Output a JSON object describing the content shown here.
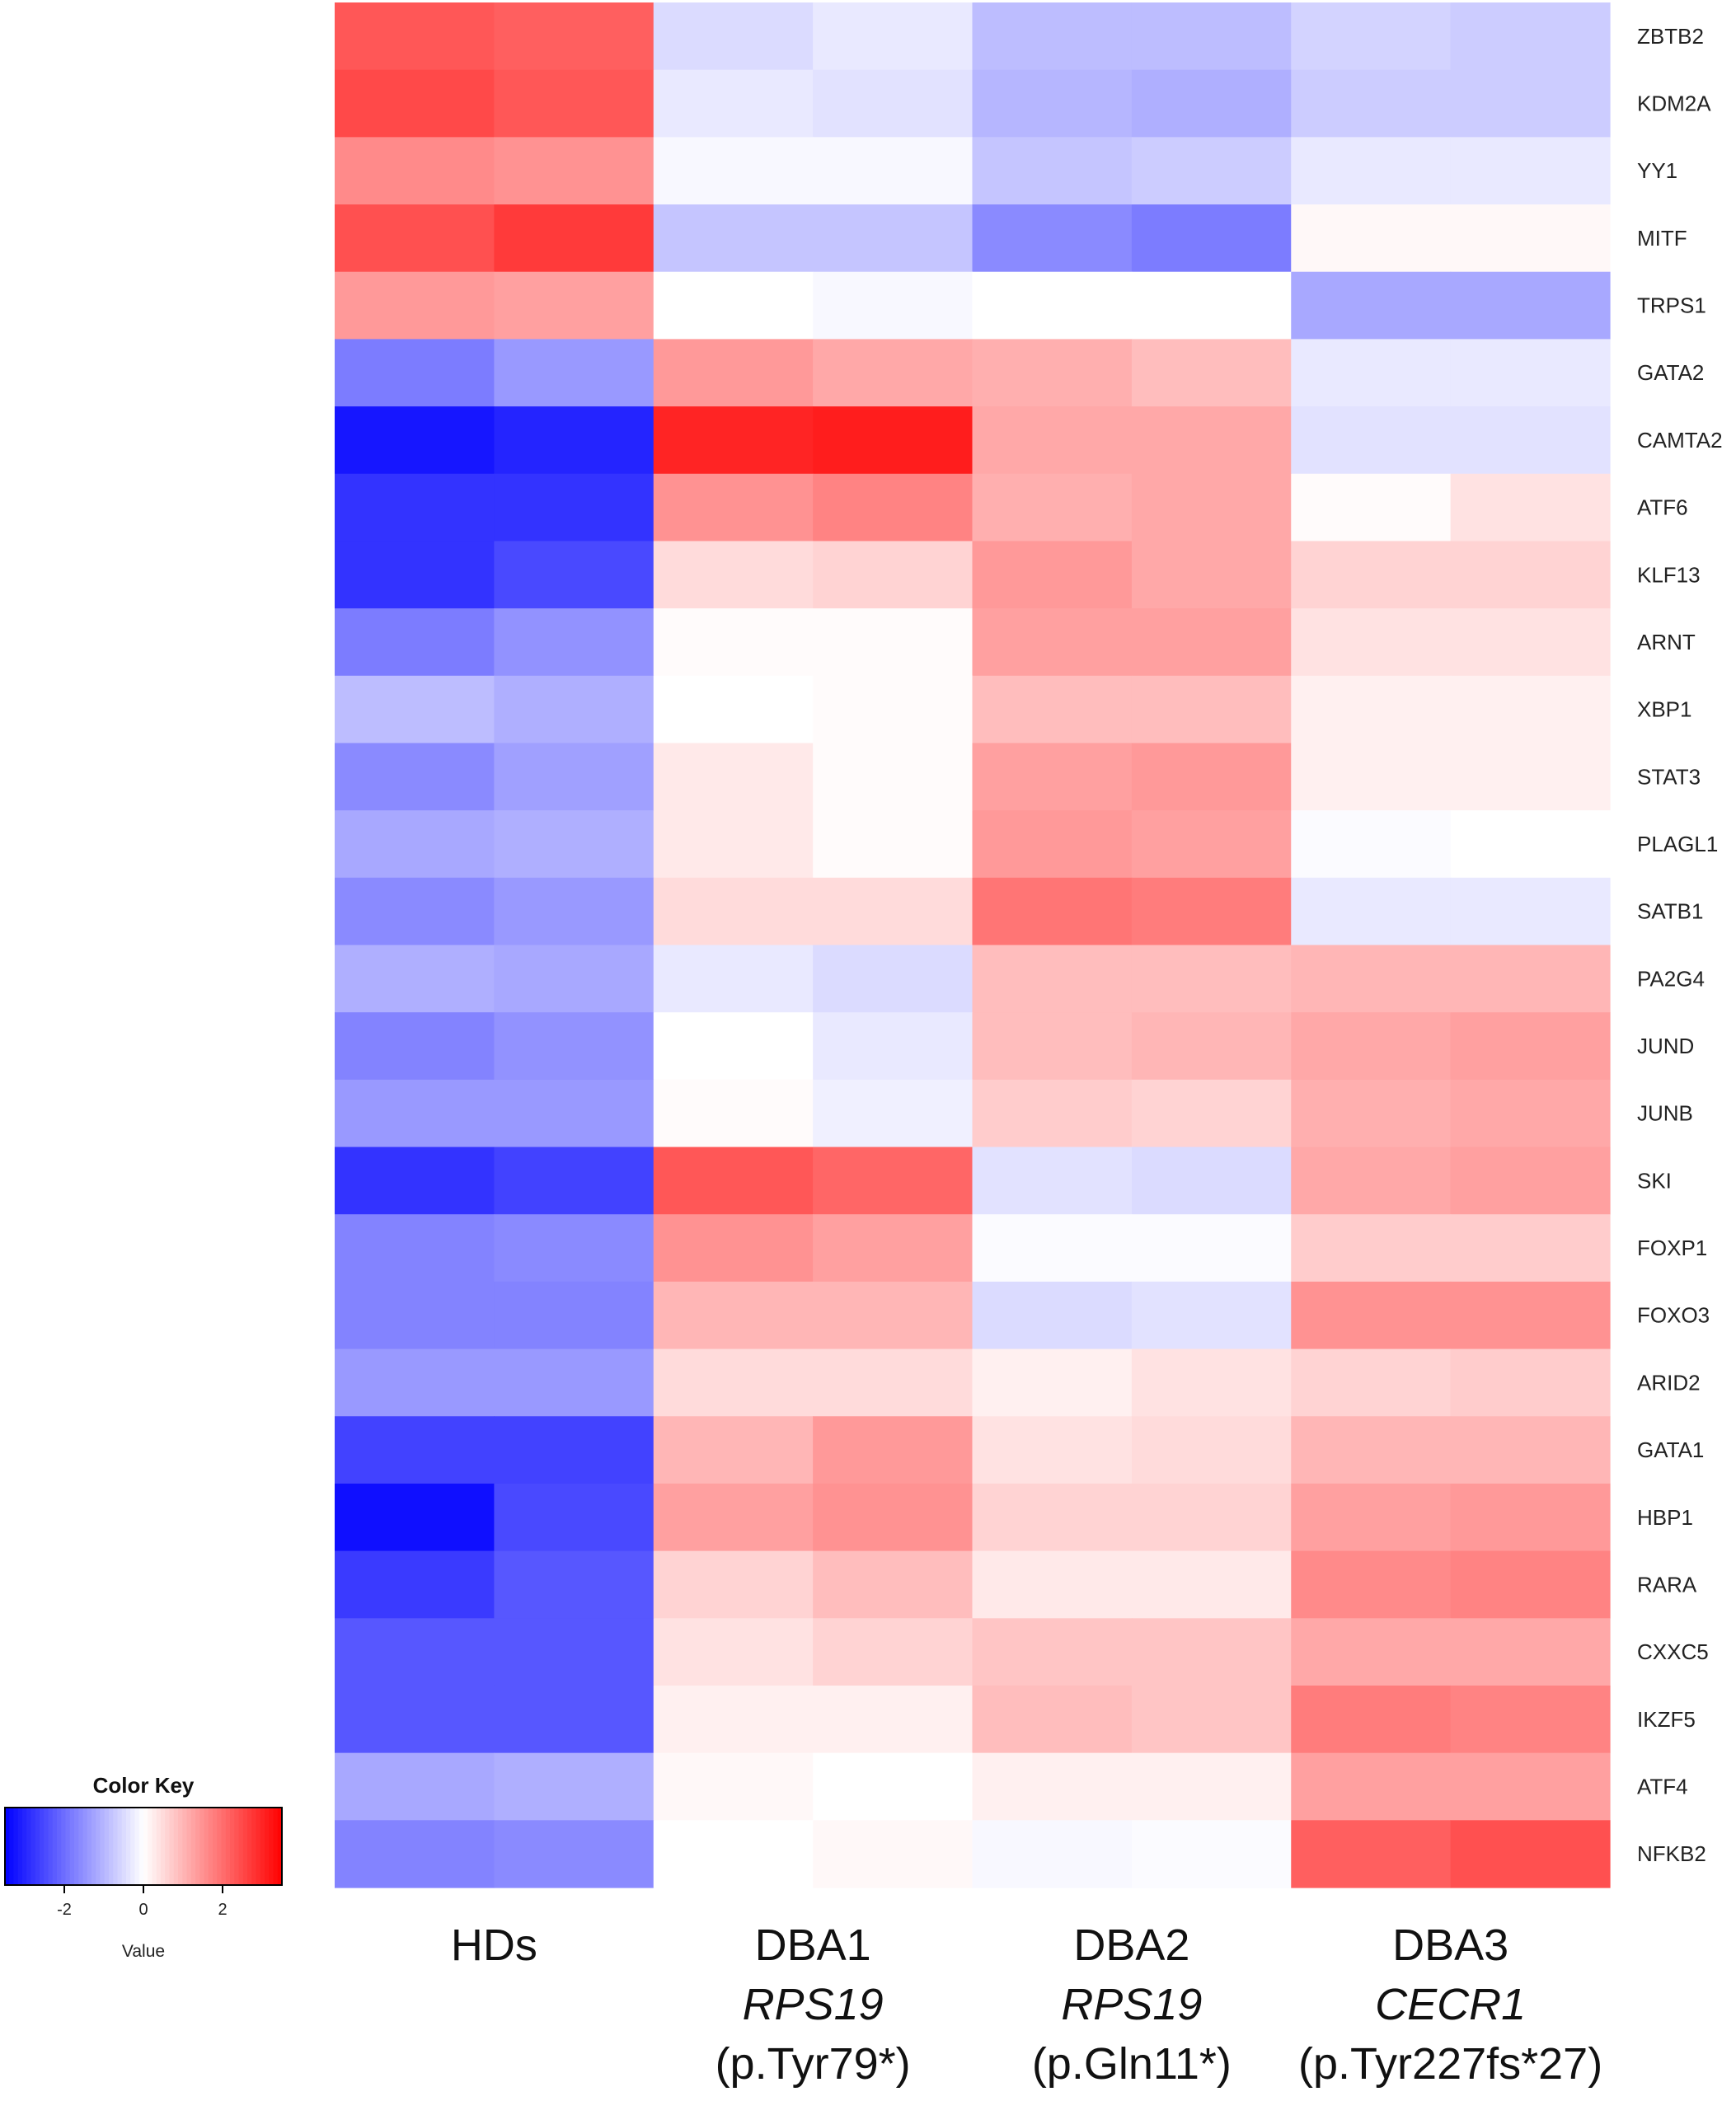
{
  "chart_data": {
    "type": "heatmap",
    "rows": [
      "ZBTB2",
      "KDM2A",
      "YY1",
      "MITF",
      "TRPS1",
      "GATA2",
      "CAMTA2",
      "ATF6",
      "KLF13",
      "ARNT",
      "XBP1",
      "STAT3",
      "PLAGL1",
      "SATB1",
      "PA2G4",
      "JUND",
      "JUNB",
      "SKI",
      "FOXP1",
      "FOXO3",
      "ARID2",
      "GATA1",
      "HBP1",
      "RARA",
      "CXXC5",
      "IKZF5",
      "ATF4",
      "NFKB2"
    ],
    "groups": [
      {
        "name": "HDs",
        "gene": "",
        "variant": ""
      },
      {
        "name": "DBA1",
        "gene": "RPS19",
        "variant": "(p.Tyr79*)"
      },
      {
        "name": "DBA2",
        "gene": "RPS19",
        "variant": "(p.Gln11*)"
      },
      {
        "name": "DBA3",
        "gene": "CECR1",
        "variant": "(p.Tyr227fs*27)"
      }
    ],
    "columns_per_group": 2,
    "values": [
      [
        2.3,
        2.2,
        -0.5,
        -0.3,
        -0.9,
        -0.9,
        -0.6,
        -0.7
      ],
      [
        2.5,
        2.3,
        -0.3,
        -0.4,
        -1.0,
        -1.1,
        -0.7,
        -0.7
      ],
      [
        1.6,
        1.5,
        -0.1,
        -0.1,
        -0.8,
        -0.7,
        -0.3,
        -0.3
      ],
      [
        2.4,
        2.7,
        -0.8,
        -0.8,
        -1.6,
        -1.8,
        0.1,
        0.1
      ],
      [
        1.4,
        1.3,
        0.0,
        -0.1,
        0.0,
        0.0,
        -1.2,
        -1.2
      ],
      [
        -1.8,
        -1.4,
        1.4,
        1.2,
        1.1,
        0.9,
        -0.3,
        -0.3
      ],
      [
        -3.2,
        -3.0,
        3.0,
        3.1,
        1.2,
        1.2,
        -0.4,
        -0.4
      ],
      [
        -2.8,
        -2.8,
        1.5,
        1.7,
        1.1,
        1.2,
        0.05,
        0.4
      ],
      [
        -2.8,
        -2.5,
        0.5,
        0.6,
        1.4,
        1.2,
        0.6,
        0.6
      ],
      [
        -1.8,
        -1.5,
        0.05,
        0.05,
        1.3,
        1.3,
        0.4,
        0.4
      ],
      [
        -0.9,
        -1.1,
        0.0,
        0.05,
        0.9,
        0.9,
        0.2,
        0.2
      ],
      [
        -1.6,
        -1.3,
        0.3,
        0.05,
        1.3,
        1.4,
        0.2,
        0.2
      ],
      [
        -1.2,
        -1.1,
        0.3,
        0.05,
        1.4,
        1.3,
        -0.05,
        0.0
      ],
      [
        -1.6,
        -1.4,
        0.5,
        0.5,
        1.9,
        1.8,
        -0.3,
        -0.3
      ],
      [
        -1.1,
        -1.2,
        -0.3,
        -0.5,
        0.9,
        0.9,
        1.0,
        1.0
      ],
      [
        -1.7,
        -1.5,
        0.0,
        -0.3,
        0.9,
        1.0,
        1.2,
        1.3
      ],
      [
        -1.4,
        -1.4,
        0.05,
        -0.2,
        0.7,
        0.6,
        1.1,
        1.2
      ],
      [
        -2.8,
        -2.6,
        2.3,
        2.1,
        -0.4,
        -0.5,
        1.2,
        1.3
      ],
      [
        -1.7,
        -1.6,
        1.5,
        1.3,
        -0.05,
        -0.05,
        0.7,
        0.7
      ],
      [
        -1.7,
        -1.7,
        1.0,
        1.0,
        -0.5,
        -0.4,
        1.5,
        1.5
      ],
      [
        -1.4,
        -1.4,
        0.5,
        0.5,
        0.2,
        0.4,
        0.6,
        0.7
      ],
      [
        -2.6,
        -2.6,
        1.0,
        1.4,
        0.4,
        0.5,
        1.0,
        1.0
      ],
      [
        -3.3,
        -2.5,
        1.3,
        1.5,
        0.6,
        0.6,
        1.3,
        1.4
      ],
      [
        -2.7,
        -2.3,
        0.6,
        0.9,
        0.3,
        0.3,
        1.6,
        1.7
      ],
      [
        -2.3,
        -2.3,
        0.4,
        0.6,
        0.8,
        0.8,
        1.2,
        1.2
      ],
      [
        -2.3,
        -2.3,
        0.2,
        0.2,
        0.9,
        0.8,
        1.8,
        1.7
      ],
      [
        -1.2,
        -1.1,
        0.1,
        0.0,
        0.2,
        0.2,
        1.3,
        1.3
      ],
      [
        -1.7,
        -1.6,
        0.0,
        0.1,
        -0.1,
        -0.05,
        2.2,
        2.4
      ]
    ],
    "color_key": {
      "title": "Color Key",
      "xlabel": "Value",
      "ticks": [
        -2,
        0,
        2
      ],
      "range": [
        -3.5,
        3.5
      ],
      "low_color": "#0000ff",
      "mid_color": "#ffffff",
      "high_color": "#ff0000"
    }
  }
}
